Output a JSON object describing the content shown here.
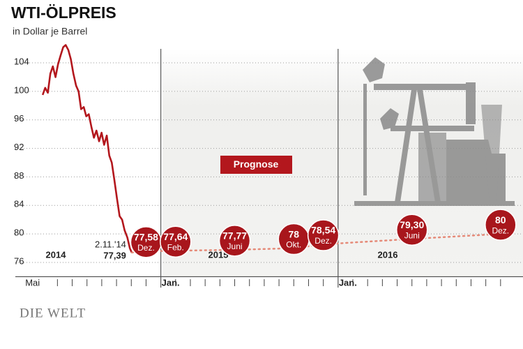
{
  "chart_data": {
    "type": "line",
    "title": "WTI-ÖLPREIS",
    "subtitle": "in Dollar je Barrel",
    "source": "DIE WELT",
    "ylim": [
      74,
      107
    ],
    "yticks": [
      76,
      80,
      84,
      88,
      92,
      96,
      100,
      104
    ],
    "grid": true,
    "xlim": [
      -1,
      32
    ],
    "xticks": [
      {
        "value": 0,
        "label": "Mai"
      },
      {
        "value": 8,
        "label": "Jan."
      },
      {
        "value": 20,
        "label": "Jan."
      }
    ],
    "x_minor_ticks": [
      1,
      2,
      3,
      4,
      5,
      6,
      7,
      9,
      10,
      11,
      12,
      13,
      14,
      15,
      16,
      17,
      18,
      19,
      21,
      22,
      23,
      24,
      25,
      26,
      27,
      28,
      29,
      30,
      31
    ],
    "year_labels": [
      "2014",
      "2015",
      "2016"
    ],
    "history": {
      "color": "#b3171d",
      "x": [
        0,
        0.17,
        0.35,
        0.52,
        0.69,
        0.87,
        1.04,
        1.21,
        1.39,
        1.56,
        1.74,
        1.91,
        2.08,
        2.26,
        2.43,
        2.6,
        2.78,
        2.95,
        3.12,
        3.3,
        3.47,
        3.64,
        3.82,
        3.99,
        4.16,
        4.34,
        4.51,
        4.68,
        4.86,
        5.03,
        5.21,
        5.38,
        5.55,
        5.73,
        5.9,
        6.03
      ],
      "values": [
        99.5,
        100.5,
        99.8,
        102.5,
        103.5,
        102,
        103.8,
        105,
        106.2,
        106.5,
        105.8,
        104.5,
        102.5,
        100.8,
        100,
        97.5,
        97.8,
        96.5,
        96.8,
        95,
        93.5,
        94.5,
        93,
        94.2,
        92.5,
        93.8,
        91,
        90,
        87.5,
        85,
        82.5,
        82,
        80.5,
        79.5,
        78,
        77.39
      ],
      "last_date": "2.11.'14",
      "last_value_label": "77,39"
    },
    "forecast": {
      "label": "Prognose",
      "color": "#a8161c",
      "line_color": "#e58a78",
      "x": [
        7,
        9,
        13,
        17,
        19,
        25,
        31
      ],
      "values": [
        77.58,
        77.64,
        77.77,
        78,
        78.54,
        79.3,
        80
      ],
      "value_labels": [
        "77,58",
        "77,64",
        "77,77",
        "78",
        "78,54",
        "79,30",
        "80"
      ],
      "month_labels": [
        "Dez.",
        "Feb.",
        "Juni",
        "Okt.",
        "Dez.",
        "Juni",
        "Dez."
      ]
    }
  }
}
